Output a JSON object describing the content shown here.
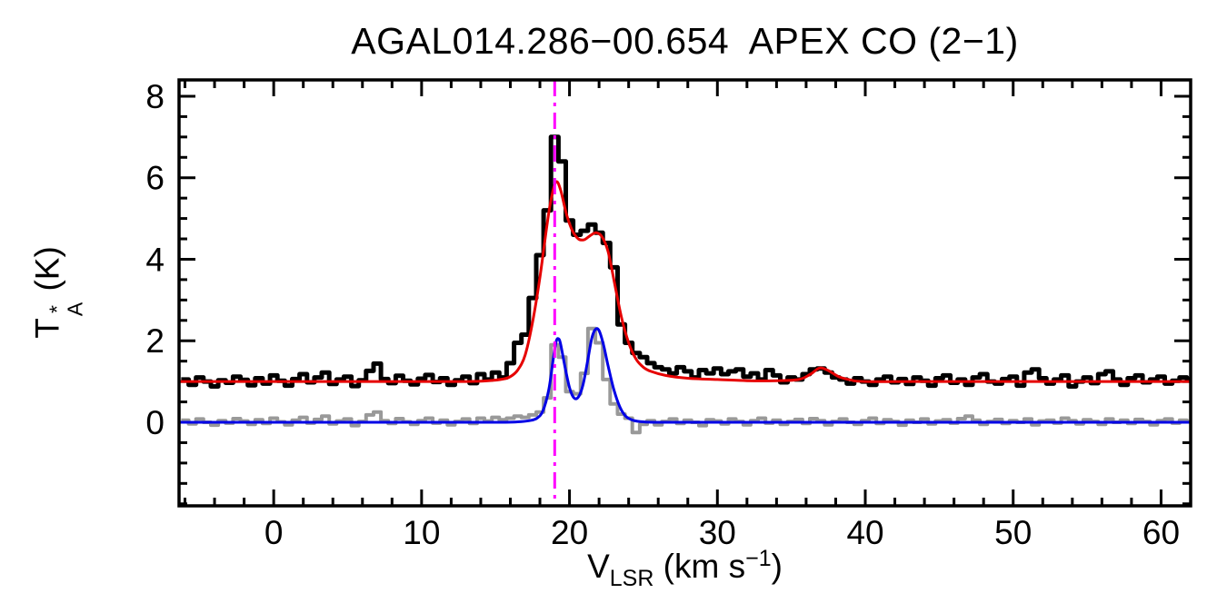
{
  "title": "AGAL014.286−00.654  APEX CO (2−1)",
  "labels": {
    "y_main": "T",
    "y_sup": "*",
    "y_sub": "A",
    "y_unit": " (K)",
    "x_main": "V",
    "x_sub": "LSR",
    "x_mid": " (km s",
    "x_sup": "−1",
    "x_end": ")"
  },
  "chart_data": {
    "type": "line",
    "title": "AGAL014.286−00.654  APEX CO (2−1)",
    "xlabel": "V_LSR (km s^-1)",
    "ylabel": "T_A^* (K)",
    "xlim": [
      -6.4,
      62
    ],
    "ylim": [
      -2.05,
      8.4
    ],
    "x_ticks": [
      0,
      10,
      20,
      30,
      40,
      50,
      60
    ],
    "y_ticks": [
      0,
      2,
      4,
      6,
      8
    ],
    "x_minor_step": 2,
    "y_minor_step": 0.5,
    "grid": false,
    "legend": "none",
    "vline": {
      "x": 19.0,
      "color": "#ff00ff",
      "style": "dash-dot",
      "name": "systemic-velocity-marker"
    },
    "colors": {
      "observed": "#000000",
      "residual": "#999999",
      "fit": "#e60000",
      "residual_fit": "#0000e6"
    },
    "series": [
      {
        "name": "observed CO(2-1) spectrum (histogram, offset baseline ~1 K)",
        "type": "histogram",
        "color_key": "observed",
        "lw": 5,
        "x_start": -6,
        "dx": 0.5,
        "values": [
          1.05,
          0.92,
          1.1,
          1.0,
          0.88,
          1.03,
          0.97,
          1.12,
          1.04,
          0.91,
          1.08,
          0.95,
          1.15,
          1.02,
          0.9,
          1.06,
          1.18,
          0.98,
          1.1,
          1.22,
          0.94,
          1.05,
          1.12,
          0.89,
          1.03,
          1.26,
          1.44,
          1.06,
          0.96,
          1.14,
          1.02,
          0.93,
          1.07,
          1.16,
          0.99,
          1.08,
          0.92,
          1.03,
          1.12,
          0.96,
          1.18,
          1.05,
          1.22,
          1.1,
          1.45,
          1.95,
          2.15,
          3.05,
          4.1,
          5.2,
          7.0,
          6.4,
          4.95,
          4.6,
          4.7,
          4.85,
          4.65,
          4.4,
          3.8,
          2.4,
          1.95,
          1.7,
          1.6,
          1.45,
          1.35,
          1.3,
          1.2,
          1.35,
          1.25,
          1.1,
          1.28,
          1.2,
          1.32,
          1.18,
          1.25,
          1.3,
          1.12,
          1.2,
          1.05,
          1.28,
          1.15,
          0.98,
          1.1,
          1.05,
          1.18,
          1.3,
          1.32,
          1.22,
          1.1,
          1.05,
          0.95,
          1.08,
          1.0,
          0.92,
          1.05,
          1.12,
          0.98,
          1.06,
          0.94,
          1.1,
          1.02,
          0.9,
          1.08,
          1.15,
          0.97,
          1.05,
          0.92,
          1.1,
          1.18,
          1.0,
          0.95,
          1.06,
          1.12,
          0.9,
          1.22,
          1.3,
          1.08,
          0.95,
          1.05,
          1.15,
          0.88,
          1.0,
          1.1,
          0.96,
          1.18,
          1.25,
          1.05,
          0.92,
          1.08,
          1.15,
          0.98,
          1.05,
          1.12,
          0.95,
          1.02,
          1.1,
          1.05
        ]
      },
      {
        "name": "residual spectrum (histogram, zero baseline)",
        "type": "histogram",
        "color_key": "residual",
        "lw": 4,
        "x_start": -6,
        "dx": 0.5,
        "values": [
          0.05,
          -0.04,
          0.08,
          0.0,
          -0.07,
          0.04,
          -0.02,
          0.09,
          0.03,
          -0.05,
          0.06,
          -0.03,
          0.1,
          0.01,
          -0.06,
          0.05,
          0.12,
          -0.02,
          0.07,
          0.15,
          -0.04,
          0.03,
          0.08,
          -0.08,
          0.02,
          0.18,
          0.25,
          0.04,
          -0.03,
          0.09,
          0.01,
          -0.05,
          0.04,
          0.1,
          -0.02,
          0.05,
          -0.06,
          0.02,
          0.08,
          -0.03,
          0.1,
          0.03,
          0.12,
          0.06,
          0.1,
          0.15,
          0.12,
          0.18,
          0.25,
          0.6,
          1.9,
          1.6,
          0.75,
          0.7,
          1.2,
          2.3,
          1.95,
          1.05,
          0.45,
          0.2,
          0.1,
          -0.25,
          -0.05,
          0.04,
          -0.06,
          0.02,
          0.08,
          -0.03,
          0.05,
          0.0,
          -0.08,
          0.06,
          0.03,
          -0.04,
          0.08,
          0.02,
          -0.06,
          0.04,
          0.1,
          -0.02,
          0.05,
          -0.05,
          0.02,
          0.07,
          -0.03,
          0.09,
          0.04,
          -0.06,
          0.02,
          0.08,
          0.0,
          -0.05,
          0.04,
          0.1,
          -0.03,
          0.06,
          0.02,
          -0.07,
          0.05,
          0.0,
          0.08,
          -0.04,
          0.03,
          0.06,
          -0.02,
          0.09,
          0.15,
          0.05,
          -0.05,
          0.02,
          0.07,
          -0.03,
          0.04,
          0.0,
          0.08,
          -0.06,
          0.03,
          0.05,
          -0.02,
          0.1,
          0.04,
          -0.04,
          0.06,
          0.02,
          -0.05,
          0.08,
          0.0,
          0.05,
          -0.03,
          0.07,
          0.02,
          -0.06,
          0.04,
          0.08,
          -0.02,
          0.05,
          0.01
        ]
      },
      {
        "name": "gaussian model fit to observed spectrum",
        "type": "smooth",
        "color_key": "fit",
        "lw": 3,
        "points": [
          [
            -6.4,
            1.0
          ],
          [
            0,
            1.0
          ],
          [
            5,
            1.0
          ],
          [
            10,
            1.0
          ],
          [
            13,
            1.0
          ],
          [
            14.5,
            1.02
          ],
          [
            15.5,
            1.06
          ],
          [
            16,
            1.12
          ],
          [
            16.5,
            1.28
          ],
          [
            17,
            1.65
          ],
          [
            17.5,
            2.45
          ],
          [
            18,
            3.55
          ],
          [
            18.5,
            4.9
          ],
          [
            18.8,
            5.55
          ],
          [
            19.1,
            5.9
          ],
          [
            19.4,
            5.7
          ],
          [
            19.8,
            5.1
          ],
          [
            20.2,
            4.7
          ],
          [
            20.6,
            4.5
          ],
          [
            21.0,
            4.48
          ],
          [
            21.4,
            4.58
          ],
          [
            21.8,
            4.65
          ],
          [
            22.2,
            4.55
          ],
          [
            22.6,
            4.2
          ],
          [
            23.0,
            3.5
          ],
          [
            23.5,
            2.6
          ],
          [
            24.0,
            1.95
          ],
          [
            24.5,
            1.55
          ],
          [
            25.0,
            1.35
          ],
          [
            25.5,
            1.25
          ],
          [
            26.5,
            1.15
          ],
          [
            28,
            1.08
          ],
          [
            30,
            1.05
          ],
          [
            32,
            1.02
          ],
          [
            34,
            1.02
          ],
          [
            35.5,
            1.05
          ],
          [
            36.3,
            1.18
          ],
          [
            36.9,
            1.33
          ],
          [
            37.5,
            1.27
          ],
          [
            38.2,
            1.12
          ],
          [
            39,
            1.04
          ],
          [
            40,
            1.0
          ],
          [
            45,
            1.0
          ],
          [
            50,
            1.0
          ],
          [
            55,
            1.0
          ],
          [
            62,
            1.0
          ]
        ]
      },
      {
        "name": "gaussian fit to residual spectrum",
        "type": "smooth",
        "color_key": "residual_fit",
        "lw": 3,
        "points": [
          [
            -6.4,
            0.0
          ],
          [
            0,
            0.0
          ],
          [
            10,
            0.0
          ],
          [
            15,
            0.0
          ],
          [
            16.5,
            0.01
          ],
          [
            17.3,
            0.04
          ],
          [
            17.8,
            0.1
          ],
          [
            18.2,
            0.28
          ],
          [
            18.6,
            0.8
          ],
          [
            18.9,
            1.55
          ],
          [
            19.1,
            1.98
          ],
          [
            19.25,
            2.05
          ],
          [
            19.4,
            1.92
          ],
          [
            19.7,
            1.35
          ],
          [
            20.0,
            0.85
          ],
          [
            20.3,
            0.6
          ],
          [
            20.6,
            0.62
          ],
          [
            20.9,
            0.9
          ],
          [
            21.2,
            1.45
          ],
          [
            21.5,
            2.05
          ],
          [
            21.75,
            2.28
          ],
          [
            22.0,
            2.25
          ],
          [
            22.3,
            1.9
          ],
          [
            22.6,
            1.4
          ],
          [
            23.0,
            0.8
          ],
          [
            23.4,
            0.38
          ],
          [
            23.8,
            0.15
          ],
          [
            24.3,
            0.05
          ],
          [
            25.0,
            0.01
          ],
          [
            26,
            0.0
          ],
          [
            30,
            0.0
          ],
          [
            40,
            0.0
          ],
          [
            50,
            0.0
          ],
          [
            62,
            0.0
          ]
        ]
      }
    ]
  }
}
